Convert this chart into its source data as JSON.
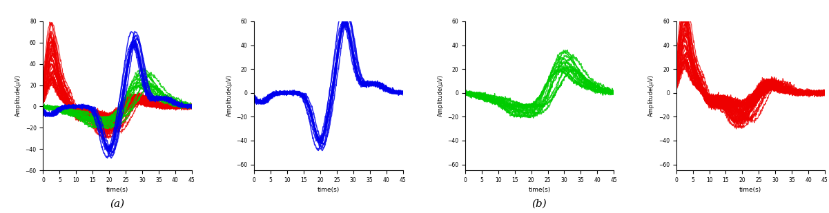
{
  "t_max": 45,
  "t_points": 450,
  "ylim_panel1": [
    -60,
    80
  ],
  "ylim_panels": [
    -65,
    60
  ],
  "yticks_panel1": [
    -60,
    -40,
    -20,
    0,
    20,
    40,
    60,
    80
  ],
  "yticks_panels": [
    -60,
    -40,
    -20,
    0,
    20,
    40,
    60
  ],
  "xlabel": "time(s)",
  "ylabel": "Amplitude(μV)",
  "label_a": "(a)",
  "label_b": "(b)",
  "blue_color": "#0000EE",
  "green_color": "#00CC00",
  "red_color": "#EE0000",
  "bg_color": "#FFFFFF",
  "linewidth": 0.8,
  "alpha": 0.85,
  "n_blue": 12,
  "n_green": 15,
  "n_red": 35
}
